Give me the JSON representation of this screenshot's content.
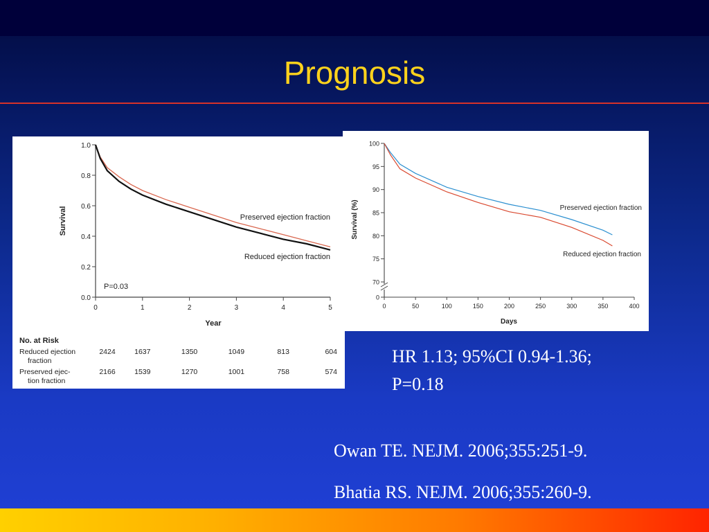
{
  "slide": {
    "title": "Prognosis",
    "stat_line1": "HR 1.13; 95%CI 0.94-1.36;",
    "stat_line2": "P=0.18",
    "references": [
      "Owan TE. NEJM. 2006;355:251-9.",
      "Bhatia RS. NEJM. 2006;355:260-9."
    ],
    "colors": {
      "title": "#ffd21c",
      "rule": "#d8322a"
    }
  },
  "chart_data": [
    {
      "type": "line",
      "xlabel": "Year",
      "ylabel": "Survival",
      "xticks": [
        "0",
        "1",
        "2",
        "3",
        "4",
        "5"
      ],
      "yticks": [
        "0.0",
        "0.2",
        "0.4",
        "0.6",
        "0.8",
        "1.0"
      ],
      "xlim": [
        0,
        5
      ],
      "ylim": [
        0,
        1.0
      ],
      "annotation": "P=0.03",
      "series": [
        {
          "name": "Preserved ejection fraction",
          "color": "#d9674f",
          "x": [
            0,
            0.1,
            0.25,
            0.5,
            0.75,
            1,
            1.5,
            2,
            2.5,
            3,
            3.5,
            4,
            4.5,
            5
          ],
          "y": [
            1.0,
            0.92,
            0.85,
            0.79,
            0.74,
            0.7,
            0.64,
            0.59,
            0.54,
            0.49,
            0.45,
            0.41,
            0.37,
            0.33
          ]
        },
        {
          "name": "Reduced ejection fraction",
          "color": "#111111",
          "x": [
            0,
            0.1,
            0.25,
            0.5,
            0.75,
            1,
            1.5,
            2,
            2.5,
            3,
            3.5,
            4,
            4.5,
            5
          ],
          "y": [
            1.0,
            0.91,
            0.83,
            0.76,
            0.71,
            0.67,
            0.61,
            0.56,
            0.51,
            0.46,
            0.42,
            0.38,
            0.35,
            0.31
          ]
        }
      ],
      "risk_table": {
        "header": "No. at Risk",
        "rows": [
          {
            "label": [
              "Reduced ejection",
              "fraction"
            ],
            "values": [
              "2424",
              "1637",
              "1350",
              "1049",
              "813",
              "604"
            ]
          },
          {
            "label": [
              "Preserved ejec-",
              "tion fraction"
            ],
            "values": [
              "2166",
              "1539",
              "1270",
              "1001",
              "758",
              "574"
            ]
          }
        ]
      }
    },
    {
      "type": "line",
      "xlabel": "Days",
      "ylabel": "Survival (%)",
      "xticks": [
        "0",
        "50",
        "100",
        "150",
        "200",
        "250",
        "300",
        "350",
        "400"
      ],
      "yticks": [
        "0",
        "70",
        "75",
        "80",
        "85",
        "90",
        "95",
        "100"
      ],
      "xlim": [
        0,
        400
      ],
      "ylim": [
        70,
        100
      ],
      "axis_break": true,
      "series": [
        {
          "name": "Preserved ejection fraction",
          "color": "#2b8fd0",
          "x": [
            0,
            10,
            25,
            50,
            75,
            100,
            150,
            200,
            250,
            300,
            350,
            365
          ],
          "y": [
            100,
            98,
            95.5,
            93.5,
            92,
            90.5,
            88.5,
            86.8,
            85.5,
            83.5,
            81.2,
            80.2
          ]
        },
        {
          "name": "Reduced ejection fraction",
          "color": "#d9482e",
          "x": [
            0,
            10,
            25,
            50,
            75,
            100,
            150,
            200,
            250,
            300,
            350,
            365
          ],
          "y": [
            100,
            97.5,
            94.5,
            92.5,
            91,
            89.5,
            87.2,
            85.2,
            84,
            81.8,
            79,
            77.8
          ]
        }
      ]
    }
  ]
}
